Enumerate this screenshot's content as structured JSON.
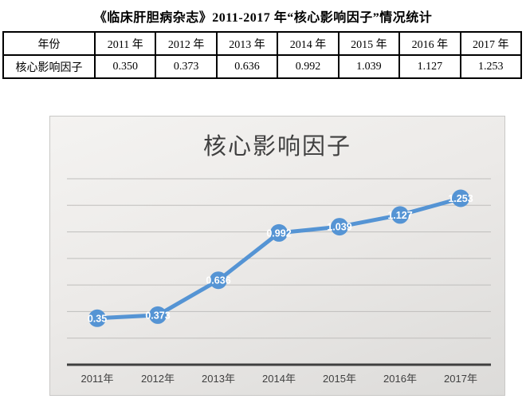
{
  "document": {
    "title": "《临床肝胆病杂志》2011-2017 年“核心影响因子”情况统计"
  },
  "table": {
    "columns": [
      "年份",
      "2011 年",
      "2012 年",
      "2013 年",
      "2014 年",
      "2015 年",
      "2016 年",
      "2017 年"
    ],
    "row_label": "核心影响因子",
    "values": [
      "0.350",
      "0.373",
      "0.636",
      "0.992",
      "1.039",
      "1.127",
      "1.253"
    ]
  },
  "chart_data": {
    "type": "line",
    "title": "核心影响因子",
    "categories": [
      "2011年",
      "2012年",
      "2013年",
      "2014年",
      "2015年",
      "2016年",
      "2017年"
    ],
    "values": [
      0.35,
      0.373,
      0.636,
      0.992,
      1.039,
      1.127,
      1.253
    ],
    "data_labels": [
      "0.35",
      "0.373",
      "0.636",
      "0.992",
      "1.039",
      "1.127",
      "1.253"
    ],
    "xlabel": "",
    "ylabel": "",
    "ylim": [
      0,
      1.4
    ],
    "grid_step": 0.2,
    "grid": true,
    "y_axis_labels_shown": false,
    "legend_position": "none",
    "colors": {
      "line": "#5594D4",
      "marker": "#5594D4",
      "data_label": "#ffffff",
      "axis_line": "#3f3f3f",
      "gridline": "#bfbebc",
      "category_label": "#3f3f3f",
      "title": "#3f3f3f"
    }
  }
}
